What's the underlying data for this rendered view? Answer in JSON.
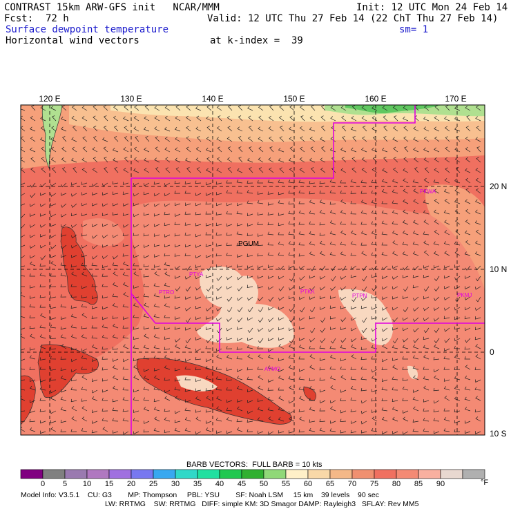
{
  "header": {
    "line1_left": "CONTRAST 15km ARW-GFS init   NCAR/MMM",
    "line1_right": "Init: 12 UTC Mon 24 Feb 14",
    "forecast_label": "Fcst:",
    "forecast_value": "72 h",
    "valid": "Valid: 12 UTC Thu 27 Feb 14 (22 ChT Thu 27 Feb 14)",
    "field1": "Surface dewpoint temperature",
    "smoothing": "sm= 1",
    "field2": "Horizontal wind vectors",
    "kindex": "at k-index =  39"
  },
  "map": {
    "lon_labels": [
      "120 E",
      "130 E",
      "140 E",
      "150 E",
      "160 E",
      "170 E"
    ],
    "lat_labels": [
      "20 N",
      "10 N",
      "0",
      "10 S"
    ],
    "stations": [
      "PGUM",
      "PTYA",
      "PTKK",
      "PTRO",
      "PTPN",
      "PKMJ",
      "PKWA",
      "AYMO"
    ],
    "colors": {
      "dewpoint_70_75": "#f07060",
      "dewpoint_75_80": "#f48a74",
      "dewpoint_65_70": "#f6a07a",
      "dewpoint_80_85": "#f8d8c0",
      "dewpoint_60_65": "#f8c090",
      "dewpoint_55_60": "#fbe3b0",
      "dewpoint_45_50": "#b0e090",
      "dewpoint_40_45": "#60c860",
      "land": "#e04030",
      "boundary": "#e000e0"
    }
  },
  "colorbar": {
    "title": "BARB VECTORS:  FULL BARB = 10 kts",
    "ticks": [
      "0",
      "5",
      "10",
      "15",
      "20",
      "25",
      "30",
      "35",
      "40",
      "45",
      "50",
      "55",
      "60",
      "65",
      "70",
      "75",
      "80",
      "85",
      "90"
    ],
    "unit": "°F",
    "swatch_colors": [
      "#800080",
      "#808080",
      "#9a7ab0",
      "#b078c0",
      "#a070e0",
      "#7878f0",
      "#38a8f0",
      "#30d8c8",
      "#20e0a0",
      "#20c850",
      "#30b030",
      "#90d878",
      "#fff0c8",
      "#f8d8a8",
      "#f4b888",
      "#f09070",
      "#f07060",
      "#f48a74",
      "#f8b0a0",
      "#e8d8d0",
      "#b0b0b0"
    ]
  },
  "footer": {
    "line1": "Model Info: V3.5.1    CU: G3        MP: Thompson     PBL: YSU        SF: Noah LSM     15 km    39 levels    90 sec",
    "line2": "LW: RRTMG    SW: RRTMG   DIFF: simple KM: 3D Smagor DAMP: Rayleigh3   SFLAY: Rev MM5"
  }
}
